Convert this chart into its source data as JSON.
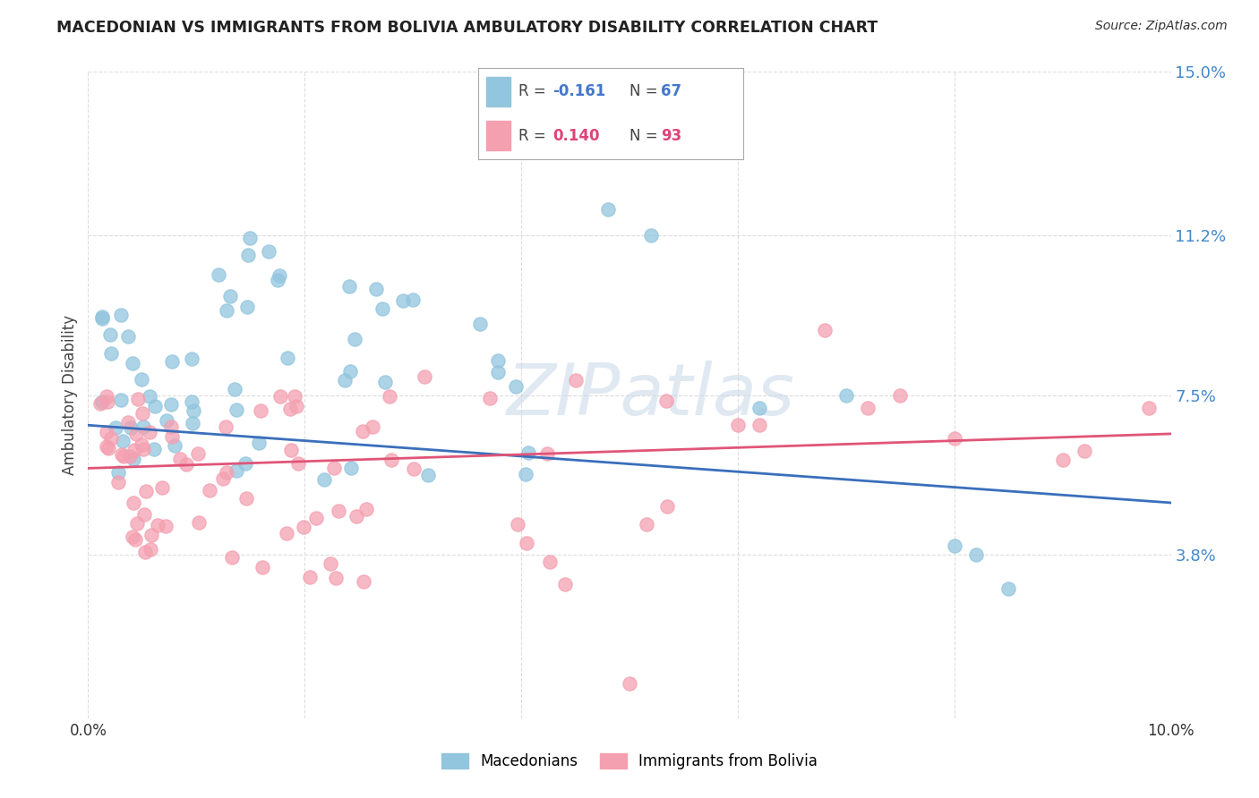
{
  "title": "MACEDONIAN VS IMMIGRANTS FROM BOLIVIA AMBULATORY DISABILITY CORRELATION CHART",
  "source": "Source: ZipAtlas.com",
  "ylabel": "Ambulatory Disability",
  "xlim": [
    0.0,
    0.1
  ],
  "ylim": [
    0.0,
    0.15
  ],
  "yticks": [
    0.0,
    0.038,
    0.075,
    0.112,
    0.15
  ],
  "ytick_labels": [
    "",
    "3.8%",
    "7.5%",
    "11.2%",
    "15.0%"
  ],
  "xticks": [
    0.0,
    0.02,
    0.04,
    0.06,
    0.08,
    0.1
  ],
  "xtick_labels": [
    "0.0%",
    "",
    "",
    "",
    "",
    "10.0%"
  ],
  "macedonian_color": "#92c5de",
  "bolivia_color": "#f4a0b0",
  "macedonian_R": -0.161,
  "macedonian_N": 67,
  "bolivia_R": 0.14,
  "bolivia_N": 93,
  "trend_blue": "#3a6fbb",
  "trend_pink": "#e05577",
  "background_color": "#ffffff",
  "grid_color": "#dddddd",
  "macedonians_label": "Macedonians",
  "bolivia_label": "Immigrants from Bolivia",
  "legend_R_color_blue": "#4477cc",
  "legend_R_color_pink": "#dd4477",
  "legend_N_color_blue": "#4477cc",
  "legend_N_color_pink": "#dd4477",
  "mac_trend_start_y": 0.068,
  "mac_trend_end_y": 0.05,
  "bol_trend_start_y": 0.058,
  "bol_trend_end_y": 0.066
}
